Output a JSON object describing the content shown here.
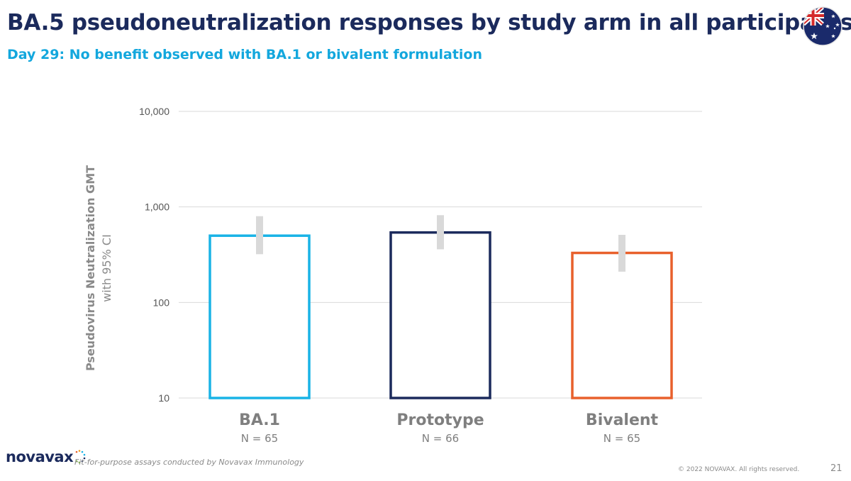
{
  "slide": {
    "title": "BA.5 pseudoneutralization responses by study arm in all participants",
    "subtitle": "Day 29: No benefit observed with BA.1 or bivalent formulation",
    "footnote": "Fit-for-purpose assays conducted by Novavax Immunology",
    "copyright": "© 2022 NOVAVAX. All rights reserved.",
    "page_number": "21",
    "logo_text": "novavax",
    "flag_icon": "australia-flag-icon"
  },
  "chart_data": {
    "type": "bar",
    "yscale": "log",
    "ylim": [
      10,
      10000
    ],
    "ytick_values": [
      10,
      100,
      1000,
      10000
    ],
    "ytick_labels": [
      "10",
      "100",
      "1,000",
      "10,000"
    ],
    "ylabel": "Pseudovirus Neutralization GMT",
    "ylabel_sub": "with 95% CI",
    "grid": true,
    "categories": [
      "BA.1",
      "Prototype",
      "Bivalent"
    ],
    "n_labels": [
      "N = 65",
      "N = 66",
      "N = 65"
    ],
    "values": [
      500,
      540,
      330
    ],
    "ci_lower": [
      320,
      360,
      210
    ],
    "ci_upper": [
      800,
      820,
      510
    ],
    "colors": [
      "#19b3e6",
      "#1b2a5c",
      "#e8602c"
    ],
    "errorbar_color": "#d9d9d9",
    "gridline_color": "#d9d9d9"
  }
}
